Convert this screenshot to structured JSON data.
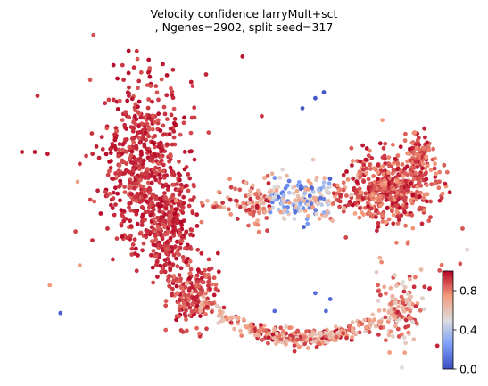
{
  "chart_data": {
    "type": "scatter",
    "title_line1": "Velocity confidence larryMult+sct",
    "title_line2": ", Ngenes=2902, split seed=317",
    "xlabel": "",
    "ylabel": "",
    "axes_visible": false,
    "grid": false,
    "colormap": "coolwarm",
    "colorbar": {
      "min": 0.0,
      "max": 1.0,
      "ticks": [
        0.0,
        0.4,
        0.8
      ],
      "tick_labels": [
        "0.0",
        "0.4",
        "0.8"
      ],
      "placement": "bottom-right"
    },
    "colors": {
      "low": "#3b4cc0",
      "mid": "#dddddd",
      "high": "#b40426"
    },
    "points": {
      "outliers": [
        {
          "x": -9.2,
          "y": 5.8,
          "v": 0.97
        },
        {
          "x": -8.6,
          "y": 5.8,
          "v": 0.97
        },
        {
          "x": -8.0,
          "y": 5.7,
          "v": 0.96
        },
        {
          "x": -6.2,
          "y": 5.6,
          "v": 0.9
        },
        {
          "x": -6.5,
          "y": 5.2,
          "v": 0.92
        },
        {
          "x": -6.6,
          "y": 4.3,
          "v": 0.7
        },
        {
          "x": -5.1,
          "y": 3.7,
          "v": 0.85
        },
        {
          "x": -6.7,
          "y": 1.8,
          "v": 0.9
        },
        {
          "x": -6.5,
          "y": 0.1,
          "v": 0.75
        },
        {
          "x": -7.9,
          "y": -0.9,
          "v": 0.75
        },
        {
          "x": -7.4,
          "y": -2.3,
          "v": 0.05
        },
        {
          "x": -0.6,
          "y": 9.7,
          "v": 0.95
        },
        {
          "x": 1.1,
          "y": 10.6,
          "v": 0.97
        },
        {
          "x": 2.0,
          "y": 7.6,
          "v": 0.92
        },
        {
          "x": 3.9,
          "y": 8.0,
          "v": 0.05
        },
        {
          "x": 4.5,
          "y": 8.5,
          "v": 0.03
        },
        {
          "x": 4.9,
          "y": 8.8,
          "v": 0.02
        },
        {
          "x": 4.5,
          "y": -1.3,
          "v": 0.1
        },
        {
          "x": 5.2,
          "y": -1.6,
          "v": 0.08
        },
        {
          "x": 5.0,
          "y": -2.2,
          "v": 0.1
        },
        {
          "x": 2.6,
          "y": -2.2,
          "v": 0.1
        }
      ],
      "clusters": [
        {
          "name": "left_arm",
          "n": 560,
          "cx": -3.5,
          "cy": 5.3,
          "sx": 1.0,
          "sy": 2.0,
          "vmin": 0.85,
          "vmax": 1.0
        },
        {
          "name": "left_spine",
          "n": 260,
          "cx": -2.4,
          "cy": 1.8,
          "sx": 0.55,
          "sy": 1.2,
          "vmin": 0.85,
          "vmax": 1.0
        },
        {
          "name": "lower_left_bend",
          "n": 180,
          "cx": -1.2,
          "cy": -1.3,
          "sx": 0.55,
          "sy": 0.9,
          "vmin": 0.8,
          "vmax": 1.0
        },
        {
          "name": "bottom_arc",
          "n": 330,
          "cx": 4.0,
          "cy": -3.5,
          "sx": 2.6,
          "sy": 0.45,
          "vmin": 0.55,
          "vmax": 0.98
        },
        {
          "name": "bottom_right_tip",
          "n": 110,
          "cx": 8.5,
          "cy": -2.0,
          "sx": 0.6,
          "sy": 0.9,
          "vmin": 0.5,
          "vmax": 0.95
        },
        {
          "name": "middle_band",
          "n": 330,
          "cx": 3.6,
          "cy": 3.4,
          "sx": 2.2,
          "sy": 0.55,
          "vmin": 0.0,
          "vmax": 0.95
        },
        {
          "name": "right_lobe",
          "n": 430,
          "cx": 8.2,
          "cy": 4.0,
          "sx": 1.0,
          "sy": 0.9,
          "vmin": 0.75,
          "vmax": 1.0
        },
        {
          "name": "right_upper_tail",
          "n": 90,
          "cx": 9.3,
          "cy": 5.6,
          "sx": 0.35,
          "sy": 0.6,
          "vmin": 0.75,
          "vmax": 0.98
        }
      ]
    },
    "xlim": [
      -9.6,
      10.4
    ],
    "ylim": [
      -4.4,
      11.2
    ]
  }
}
